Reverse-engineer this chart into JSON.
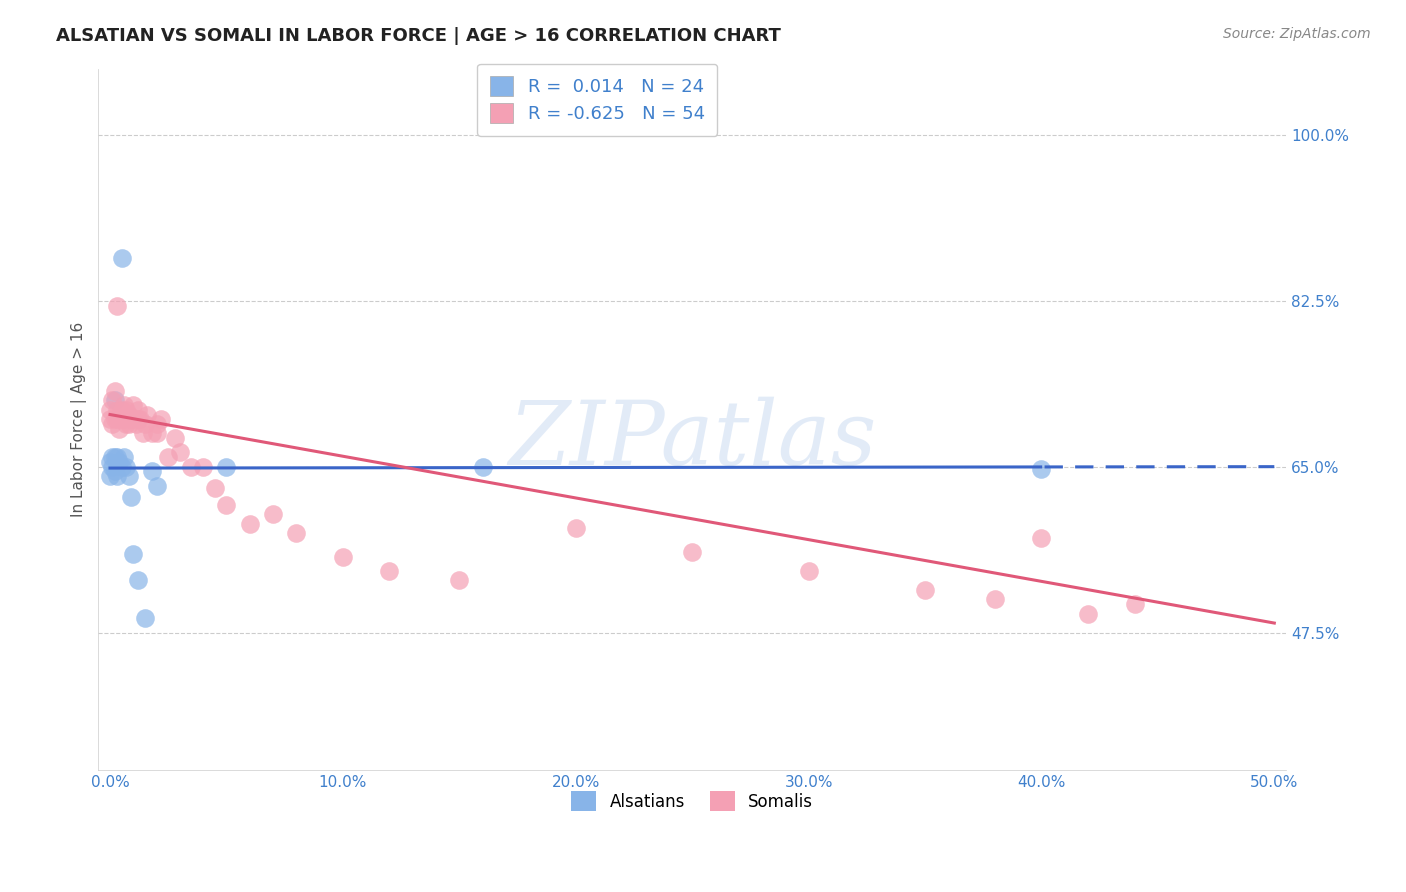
{
  "title": "ALSATIAN VS SOMALI IN LABOR FORCE | AGE > 16 CORRELATION CHART",
  "source": "Source: ZipAtlas.com",
  "ylabel": "In Labor Force | Age > 16",
  "xlim": [
    -0.005,
    0.505
  ],
  "ylim": [
    0.33,
    1.07
  ],
  "xticks": [
    0.0,
    0.1,
    0.2,
    0.3,
    0.4,
    0.5
  ],
  "xtick_labels": [
    "0.0%",
    "10.0%",
    "20.0%",
    "30.0%",
    "40.0%",
    "50.0%"
  ],
  "yticks": [
    0.475,
    0.65,
    0.825,
    1.0
  ],
  "ytick_labels": [
    "47.5%",
    "65.0%",
    "82.5%",
    "100.0%"
  ],
  "grid_color": "#cccccc",
  "background_color": "#ffffff",
  "watermark": "ZIPatlas",
  "alsatian_color": "#88b4e8",
  "somali_color": "#f4a0b4",
  "alsatian_line_color": "#3a65c8",
  "somali_line_color": "#e05878",
  "legend_R1": "R =  0.014",
  "legend_N1": "N = 24",
  "legend_R2": "R = -0.625",
  "legend_N2": "N = 54",
  "tick_color": "#4080cc",
  "alsatian_points_x": [
    0.0,
    0.0,
    0.001,
    0.001,
    0.002,
    0.002,
    0.002,
    0.003,
    0.003,
    0.004,
    0.005,
    0.005,
    0.006,
    0.007,
    0.008,
    0.009,
    0.01,
    0.012,
    0.015,
    0.018,
    0.02,
    0.05,
    0.16,
    0.4
  ],
  "alsatian_points_y": [
    0.64,
    0.655,
    0.65,
    0.66,
    0.645,
    0.66,
    0.72,
    0.64,
    0.66,
    0.655,
    0.87,
    0.65,
    0.66,
    0.65,
    0.64,
    0.618,
    0.558,
    0.53,
    0.49,
    0.645,
    0.63,
    0.65,
    0.65,
    0.648
  ],
  "somali_points_x": [
    0.0,
    0.0,
    0.001,
    0.001,
    0.002,
    0.002,
    0.003,
    0.003,
    0.003,
    0.004,
    0.004,
    0.005,
    0.005,
    0.006,
    0.006,
    0.007,
    0.007,
    0.008,
    0.008,
    0.009,
    0.01,
    0.01,
    0.011,
    0.012,
    0.012,
    0.013,
    0.014,
    0.015,
    0.016,
    0.018,
    0.02,
    0.025,
    0.03,
    0.035,
    0.04,
    0.05,
    0.06,
    0.07,
    0.08,
    0.1,
    0.12,
    0.15,
    0.2,
    0.25,
    0.3,
    0.35,
    0.38,
    0.4,
    0.42,
    0.44,
    0.02,
    0.022,
    0.028,
    0.045
  ],
  "somali_points_y": [
    0.7,
    0.71,
    0.695,
    0.72,
    0.7,
    0.73,
    0.7,
    0.71,
    0.82,
    0.69,
    0.705,
    0.7,
    0.71,
    0.7,
    0.715,
    0.695,
    0.71,
    0.695,
    0.705,
    0.7,
    0.7,
    0.715,
    0.695,
    0.7,
    0.71,
    0.7,
    0.685,
    0.695,
    0.705,
    0.685,
    0.685,
    0.66,
    0.665,
    0.65,
    0.65,
    0.61,
    0.59,
    0.6,
    0.58,
    0.555,
    0.54,
    0.53,
    0.585,
    0.56,
    0.54,
    0.52,
    0.51,
    0.575,
    0.495,
    0.505,
    0.695,
    0.7,
    0.68,
    0.628
  ],
  "alsatian_line_start_x": 0.0,
  "alsatian_line_end_x": 0.5,
  "alsatian_line_y_at_0": 0.6485,
  "alsatian_line_slope": 0.003,
  "somali_line_start_x": 0.0,
  "somali_line_end_x": 0.5,
  "somali_line_y_at_0": 0.705,
  "somali_line_slope": -0.44
}
